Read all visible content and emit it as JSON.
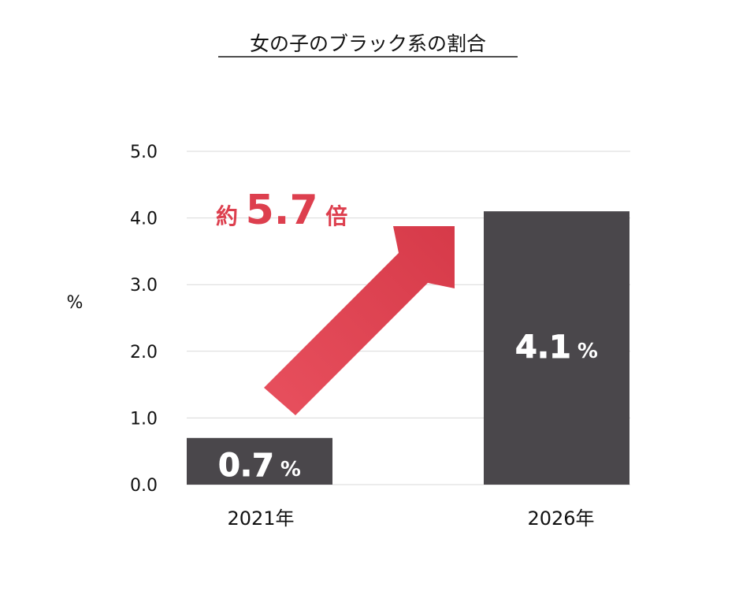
{
  "colors": {
    "bar": "#4a474b",
    "grid": "#d9d9d9",
    "arrow": "#dd3f4e",
    "accent_text": "#dd3f4e"
  },
  "chart_data": {
    "type": "bar",
    "title": "女の子のブラック系の割合",
    "ylabel": "%",
    "categories": [
      "2021年",
      "2026年"
    ],
    "values": [
      0.7,
      4.1
    ],
    "ylim": [
      0,
      5
    ],
    "yticks": [
      "0.0",
      "1.0",
      "2.0",
      "3.0",
      "4.0",
      "5.0"
    ],
    "data_labels": [
      {
        "value": "0.7",
        "unit": "%"
      },
      {
        "value": "4.1",
        "unit": "%"
      }
    ],
    "grid": true,
    "legend": "none",
    "annotation": {
      "prefix": "約",
      "value": "5.7",
      "suffix": "倍"
    }
  }
}
